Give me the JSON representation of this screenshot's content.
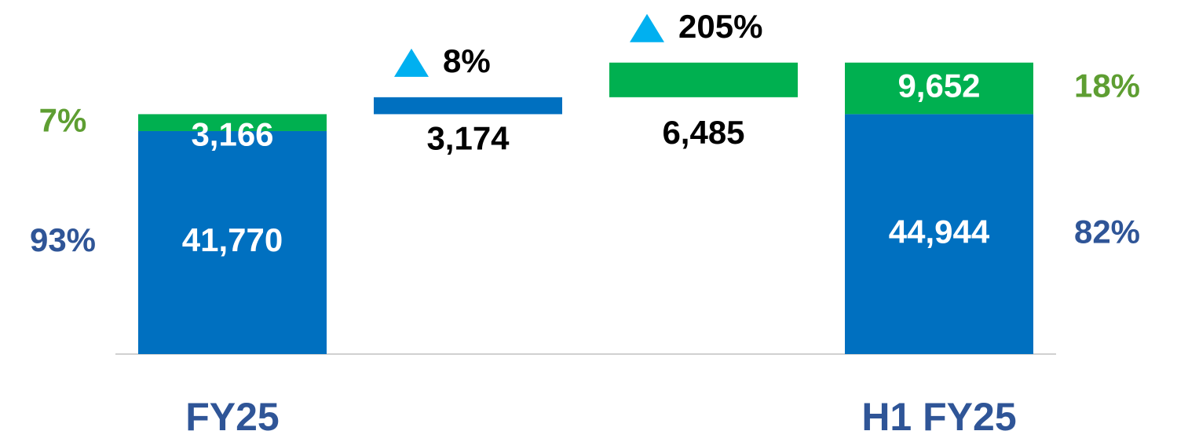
{
  "chart_data": {
    "type": "waterfall",
    "categories": [
      "FY25",
      null,
      null,
      "H1 FY25"
    ],
    "totals": [
      true,
      false,
      false,
      true
    ],
    "series": [
      {
        "color": "#0070c0",
        "label_color": "#2f5597",
        "values": [
          41770,
          3174,
          null,
          44944
        ],
        "value_labels": [
          "41,770",
          "3,174",
          null,
          "44,944"
        ],
        "pct_labels": [
          "93%",
          null,
          null,
          "82%"
        ]
      },
      {
        "color": "#00b050",
        "label_color": "#5e9e32",
        "values": [
          3166,
          null,
          6485,
          9652
        ],
        "value_labels": [
          "3,166",
          null,
          "6,485",
          "9,652"
        ],
        "pct_labels": [
          "7%",
          null,
          null,
          "18%"
        ]
      }
    ],
    "changes": [
      null,
      "8%",
      "205%",
      null
    ],
    "ylim": [
      0,
      60000
    ]
  }
}
